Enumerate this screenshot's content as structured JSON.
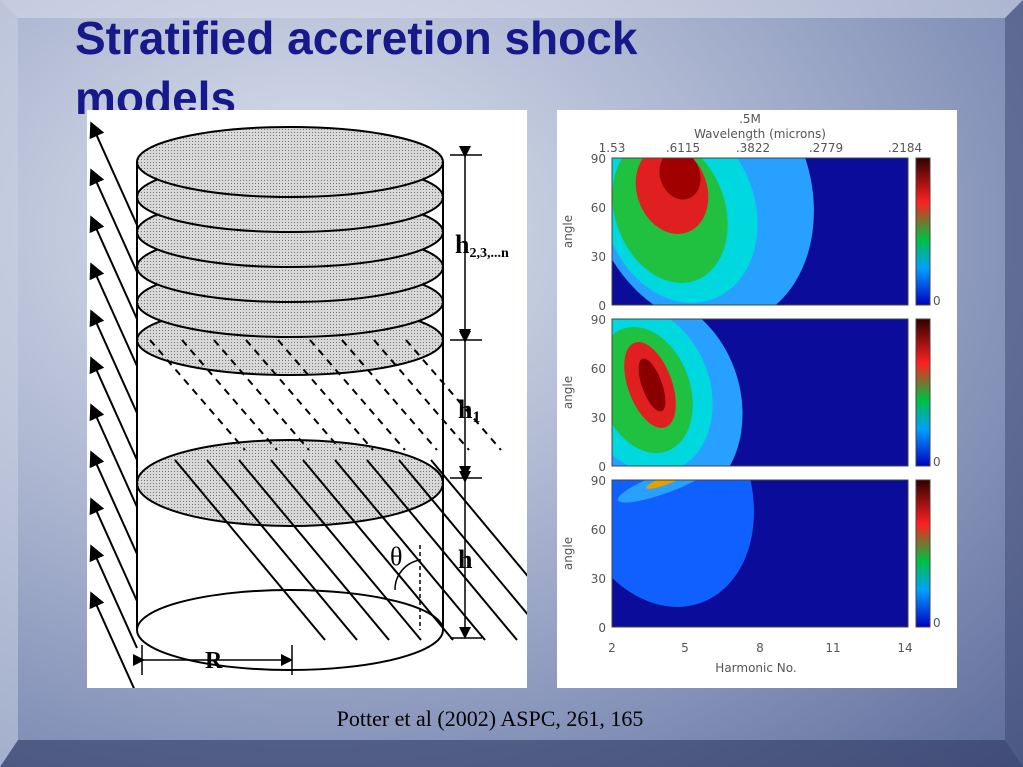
{
  "title": "Stratified accretion shock models",
  "left_figure": {
    "labels": {
      "h_stack": "h",
      "h_stack_sub": "2,3,...n",
      "h1": "h",
      "h1_sub": "1",
      "h": "h",
      "theta": "θ",
      "R": "R"
    }
  },
  "right_figure": {
    "title": ".5M",
    "top_axis_label": "Wavelength (microns)",
    "top_ticks": [
      "1.53",
      ".6115",
      ".3822",
      ".2779",
      ".2184"
    ],
    "panels": [
      {
        "y_label": "angle",
        "yticks": [
          "90",
          "60",
          "30",
          "0"
        ],
        "colorbar_min": "0"
      },
      {
        "y_label": "angle",
        "yticks": [
          "90",
          "60",
          "30",
          "0"
        ],
        "colorbar_min": "0"
      },
      {
        "y_label": "angle",
        "yticks": [
          "90",
          "60",
          "30",
          "0"
        ],
        "colorbar_min": "0"
      }
    ],
    "xticks": [
      "2",
      "5",
      "8",
      "11",
      "14"
    ],
    "x_label": "Harmonic No."
  },
  "caption": "Potter et al (2002) ASPC, 261, 165"
}
